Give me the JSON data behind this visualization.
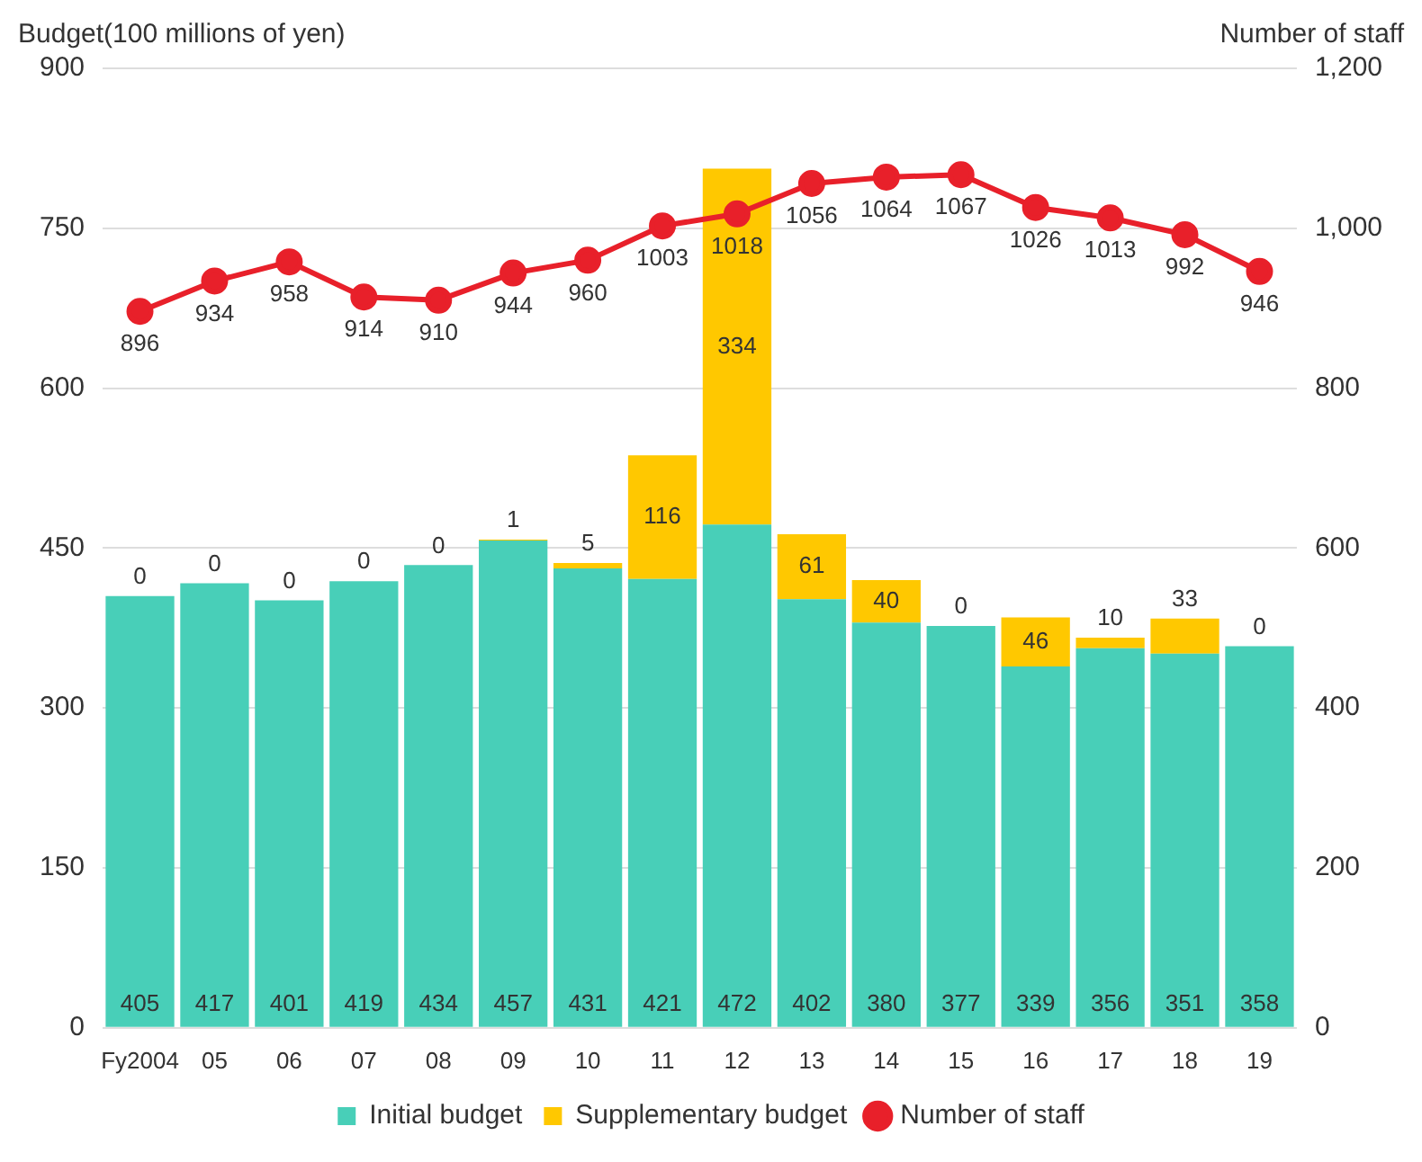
{
  "chart_data": {
    "type": "bar",
    "stacked": true,
    "ylabel": "Budget(100 millions of yen)",
    "y2label": "Number of staff",
    "categories": [
      "Fy2004",
      "05",
      "06",
      "07",
      "08",
      "09",
      "10",
      "11",
      "12",
      "13",
      "14",
      "15",
      "16",
      "17",
      "18",
      "19"
    ],
    "series": [
      {
        "name": "Initial budget",
        "color": "#48cfb8",
        "values": [
          405,
          417,
          401,
          419,
          434,
          457,
          431,
          421,
          472,
          402,
          380,
          377,
          339,
          356,
          351,
          358
        ]
      },
      {
        "name": "Supplementary budget",
        "color": "#ffc800",
        "values": [
          0,
          0,
          0,
          0,
          0,
          1,
          5,
          116,
          334,
          61,
          40,
          0,
          46,
          10,
          33,
          0
        ]
      },
      {
        "name": "Number of staff",
        "type": "line",
        "axis": "y2",
        "color": "#e8202a",
        "marker": "circle",
        "values": [
          896,
          934,
          958,
          914,
          910,
          944,
          960,
          1003,
          1018,
          1056,
          1064,
          1067,
          1026,
          1013,
          992,
          946
        ]
      }
    ],
    "ylim": [
      0,
      900
    ],
    "yticks": [
      0,
      150,
      300,
      450,
      600,
      750,
      900
    ],
    "y2lim": [
      0,
      1200
    ],
    "y2ticks": [
      0,
      200,
      400,
      600,
      800,
      {
        "value": 1000,
        "label": "1,000"
      },
      {
        "value": 1200,
        "label": "1,200"
      }
    ],
    "grid": "y",
    "legend": "bottom",
    "data_labels": true
  }
}
